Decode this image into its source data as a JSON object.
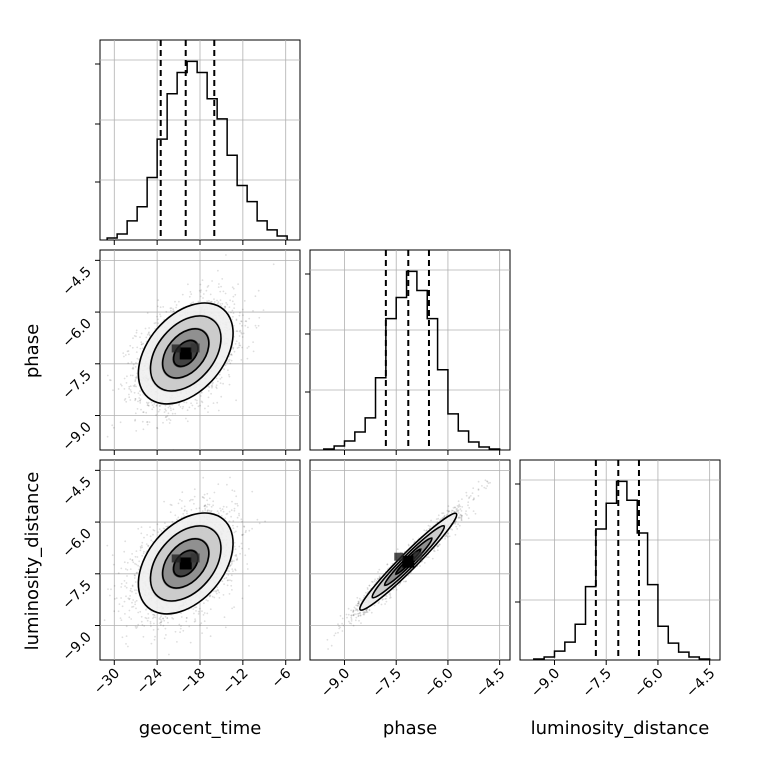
{
  "chart_data": {
    "type": "corner",
    "parameters": [
      "geocent_time",
      "phase",
      "luminosity_distance"
    ],
    "axis_labels": {
      "x": [
        "geocent_time",
        "phase",
        "luminosity_distance"
      ],
      "y": [
        "",
        "phase",
        "luminosity_distance"
      ]
    },
    "ranges": {
      "geocent_time": [
        -32,
        -4
      ],
      "phase": [
        -10.0,
        -4.2
      ]
    },
    "ticks": {
      "geocent_time": [
        -30,
        -24,
        -18,
        -12,
        -6
      ],
      "phase": [
        -9.0,
        -7.5,
        -6.0,
        -4.5
      ],
      "luminosity_distance": [
        -9.0,
        -7.5,
        -6.0,
        -4.5
      ]
    },
    "tick_labels": {
      "geocent_time": [
        "−30",
        "−24",
        "−18",
        "−12",
        "−6"
      ],
      "phase": [
        "−9.0",
        "−7.5",
        "−6.0",
        "−4.5"
      ],
      "luminosity_distance": [
        "−9.0",
        "−7.5",
        "−6.0",
        "−4.5"
      ]
    },
    "quantiles": {
      "geocent_time": [
        -23.5,
        -20.0,
        -16.0
      ],
      "phase": [
        -7.8,
        -7.15,
        -6.55
      ],
      "luminosity_distance": [
        -7.8,
        -7.15,
        -6.55
      ]
    },
    "histograms": {
      "geocent_time": {
        "edges": [
          -31,
          -29.6,
          -28.2,
          -26.8,
          -25.4,
          -24.0,
          -22.6,
          -21.2,
          -19.8,
          -18.4,
          -17.0,
          -15.6,
          -14.2,
          -12.8,
          -11.4,
          -10.0,
          -8.6,
          -7.2,
          -5.8
        ],
        "counts": [
          2,
          6,
          19,
          33,
          62,
          100,
          145,
          166,
          177,
          166,
          140,
          120,
          84,
          54,
          38,
          19,
          10,
          4
        ]
      },
      "phase": {
        "edges": [
          -9.6,
          -9.3,
          -9.0,
          -8.7,
          -8.4,
          -8.1,
          -7.8,
          -7.5,
          -7.2,
          -6.9,
          -6.6,
          -6.3,
          -6.0,
          -5.7,
          -5.4,
          -5.1,
          -4.8,
          -4.5
        ],
        "counts": [
          1,
          4,
          9,
          18,
          32,
          72,
          131,
          152,
          178,
          159,
          131,
          80,
          36,
          19,
          8,
          3,
          1
        ]
      },
      "luminosity_distance": {
        "edges": [
          -9.6,
          -9.3,
          -9.0,
          -8.7,
          -8.4,
          -8.1,
          -7.8,
          -7.5,
          -7.2,
          -6.9,
          -6.6,
          -6.3,
          -6.0,
          -5.7,
          -5.4,
          -5.1,
          -4.8,
          -4.5
        ],
        "counts": [
          1,
          3,
          9,
          18,
          36,
          74,
          132,
          158,
          180,
          161,
          128,
          76,
          34,
          17,
          8,
          3,
          1
        ]
      }
    },
    "scatter": {
      "geocent_time_phase": {
        "mean": [
          -20.0,
          -7.2
        ],
        "sd": [
          3.4,
          0.75
        ],
        "corr": 0.4
      },
      "geocent_time_luminosity_distance": {
        "mean": [
          -20.0,
          -7.2
        ],
        "sd": [
          3.4,
          0.75
        ],
        "corr": 0.4
      },
      "phase_luminosity_distance": {
        "mean": [
          -7.15,
          -7.15
        ],
        "sd": [
          0.72,
          0.72
        ],
        "corr": 0.97
      }
    },
    "colors": {
      "line": "#000000",
      "grid": "#b0b0b0",
      "points": "#000000"
    }
  }
}
